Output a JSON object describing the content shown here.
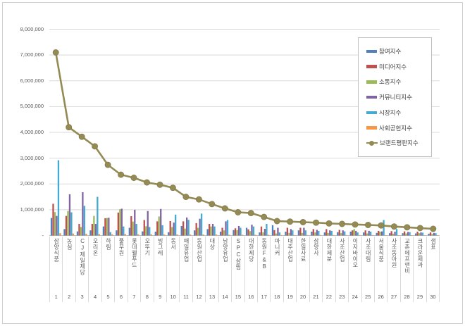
{
  "panel": {
    "background": "#ffffff",
    "border_color": "#cfcfcf"
  },
  "axis": {
    "text_color": "#595959",
    "gridline_color": "#d9d9d9",
    "baseline_color": "#bfbfbf",
    "separator_color": "#d9d9d9",
    "zero_label": "-"
  },
  "legend": {
    "border_color": "#bfbfbf",
    "position": "upper right"
  },
  "chart_data": {
    "type": "bar+line",
    "title": "",
    "xlabel": "",
    "ylabel": "",
    "ylim": [
      0,
      8000000
    ],
    "ytick_step": 1000000,
    "grid": true,
    "legend_position": "upper right",
    "categories": [
      "삼양식품",
      "농심",
      "CJ제일제당",
      "오리온",
      "하림",
      "풀무원",
      "롯데웰푸드",
      "오뚜기",
      "빙그레",
      "동서",
      "매일유업",
      "동원산업",
      "대상",
      "남양유업",
      "SPC삼립",
      "대한제당",
      "동원F&B",
      "마니커",
      "대주산업",
      "한일사료",
      "삼양사",
      "대한제분",
      "사조산업",
      "이지바이오",
      "사조대림",
      "서울식품",
      "사조동아원",
      "교촌에프앤비",
      "크라운제과",
      "샘표"
    ],
    "category_numbers": [
      "1",
      "2",
      "3",
      "4",
      "5",
      "6",
      "7",
      "8",
      "9",
      "10",
      "11",
      "12",
      "13",
      "14",
      "15",
      "16",
      "17",
      "18",
      "19",
      "20",
      "21",
      "22",
      "23",
      "24",
      "25",
      "26",
      "27",
      "28",
      "29",
      "30"
    ],
    "bar_series": [
      {
        "name": "참여지수",
        "color": "#4F81BD",
        "values": [
          680000,
          250000,
          160000,
          200000,
          350000,
          200000,
          300000,
          160000,
          150000,
          130000,
          370000,
          200000,
          250000,
          150000,
          210000,
          300000,
          120000,
          400000,
          150000,
          200000,
          150000,
          120000,
          130000,
          150000,
          120000,
          100000,
          90000,
          90000,
          80000,
          70000
        ]
      },
      {
        "name": "미디어지수",
        "color": "#C0504D",
        "values": [
          1230000,
          760000,
          450000,
          450000,
          670000,
          890000,
          750000,
          600000,
          550000,
          560000,
          550000,
          480000,
          450000,
          300000,
          280000,
          240000,
          350000,
          210000,
          300000,
          300000,
          250000,
          250000,
          220000,
          200000,
          200000,
          180000,
          170000,
          160000,
          150000,
          120000
        ]
      },
      {
        "name": "소통지수",
        "color": "#9BBB59",
        "values": [
          910000,
          950000,
          330000,
          760000,
          680000,
          1020000,
          540000,
          360000,
          740000,
          330000,
          270000,
          300000,
          350000,
          200000,
          210000,
          170000,
          120000,
          80000,
          100000,
          100000,
          120000,
          100000,
          90000,
          250000,
          80000,
          150000,
          70000,
          80000,
          90000,
          60000
        ]
      },
      {
        "name": "커뮤니티지수",
        "color": "#8064A2",
        "values": [
          760000,
          1600000,
          1680000,
          450000,
          690000,
          1040000,
          1000000,
          950000,
          1030000,
          500000,
          700000,
          650000,
          450000,
          550000,
          370000,
          420000,
          260000,
          300000,
          250000,
          300000,
          220000,
          200000,
          200000,
          180000,
          180000,
          160000,
          150000,
          140000,
          120000,
          100000
        ]
      },
      {
        "name": "시장지수",
        "color": "#45A9D1",
        "values": [
          2920000,
          900000,
          1150000,
          1500000,
          130000,
          350000,
          450000,
          330000,
          400000,
          810000,
          610000,
          850000,
          350000,
          600000,
          300000,
          350000,
          450000,
          120000,
          200000,
          200000,
          180000,
          180000,
          160000,
          120000,
          150000,
          600000,
          250000,
          130000,
          110000,
          90000
        ]
      },
      {
        "name": "사회공헌지수",
        "color": "#F79646",
        "values": [
          90000,
          80000,
          70000,
          60000,
          50000,
          60000,
          50000,
          50000,
          40000,
          40000,
          40000,
          40000,
          40000,
          30000,
          30000,
          30000,
          30000,
          20000,
          20000,
          20000,
          20000,
          20000,
          20000,
          20000,
          20000,
          15000,
          15000,
          15000,
          15000,
          15000
        ]
      }
    ],
    "line_series": {
      "name": "브랜드평판지수",
      "color": "#948A54",
      "values": [
        7100000,
        4200000,
        3830000,
        3460000,
        2740000,
        2360000,
        2240000,
        2060000,
        1970000,
        1850000,
        1500000,
        1400000,
        1220000,
        1050000,
        900000,
        870000,
        720000,
        560000,
        540000,
        520000,
        500000,
        470000,
        450000,
        430000,
        410000,
        390000,
        350000,
        320000,
        290000,
        260000
      ]
    }
  }
}
